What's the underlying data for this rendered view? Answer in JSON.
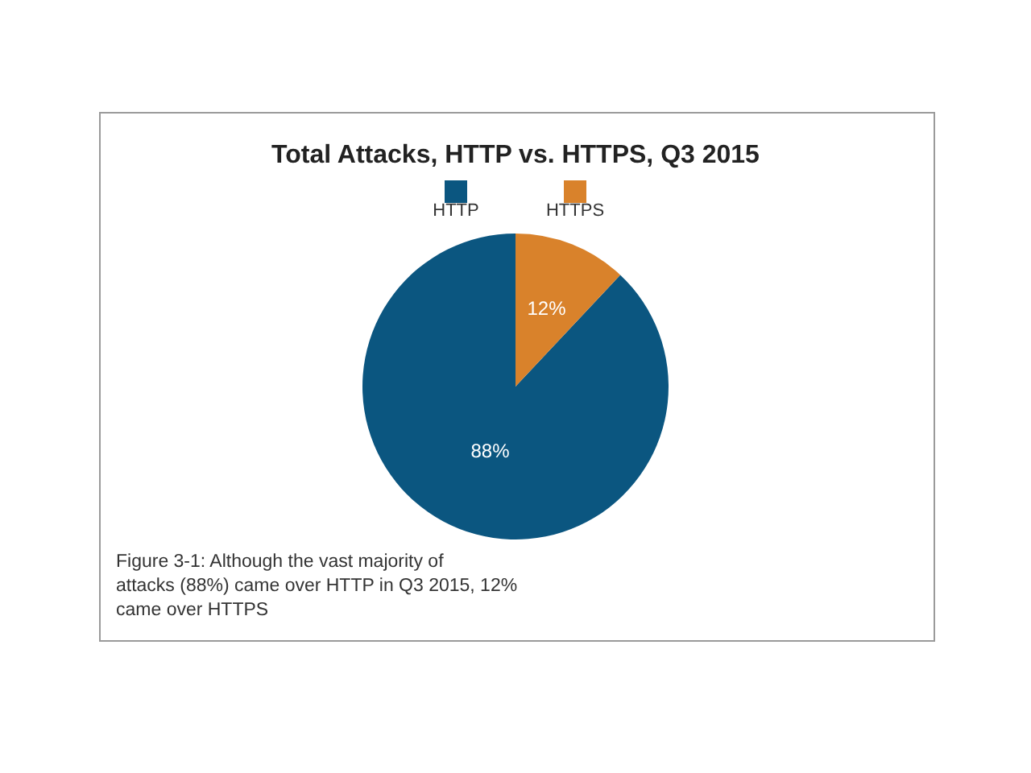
{
  "chart_data": {
    "type": "pie",
    "title": "Total Attacks, HTTP vs. HTTPS, Q3 2015",
    "categories": [
      "HTTP",
      "HTTPS"
    ],
    "values": [
      88,
      12
    ],
    "colors": [
      "#0b5680",
      "#d9822b"
    ],
    "value_labels": [
      "88%",
      "12%"
    ],
    "legend": "top",
    "annotations": [
      "Figure 3-1: Although the vast majority of attacks (88%) came over HTTP in Q3 2015, 12% came over HTTPS"
    ]
  }
}
